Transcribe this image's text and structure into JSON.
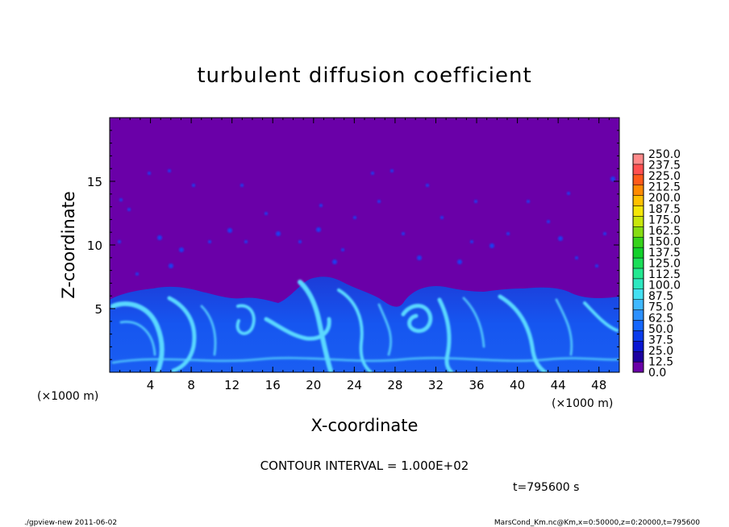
{
  "chart_data": {
    "type": "heatmap",
    "title": "turbulent diffusion coefficient",
    "xlabel": "X-coordinate",
    "ylabel": "Z-coordinate",
    "x_unit": "(×1000 m)",
    "y_unit": "(×1000 m)",
    "xlim": [
      0,
      50
    ],
    "ylim": [
      0,
      20
    ],
    "x_ticks": [
      4,
      8,
      12,
      16,
      20,
      24,
      28,
      32,
      36,
      40,
      44,
      48
    ],
    "y_ticks": [
      5,
      10,
      15
    ],
    "colorbar_levels": [
      "0.0",
      "12.5",
      "25.0",
      "37.5",
      "50.0",
      "62.5",
      "75.0",
      "87.5",
      "100.0",
      "112.5",
      "125.0",
      "137.5",
      "150.0",
      "162.5",
      "175.0",
      "187.5",
      "200.0",
      "212.5",
      "225.0",
      "237.5",
      "250.0"
    ],
    "colorbar_colors": [
      "#6a00a8",
      "#1c00a0",
      "#0a16d2",
      "#0b3cec",
      "#1466ff",
      "#2c90ff",
      "#3fb8ff",
      "#44e0f2",
      "#2de8c0",
      "#22e890",
      "#1ade58",
      "#12d02a",
      "#36d21a",
      "#86dc12",
      "#c8e60c",
      "#f4e608",
      "#ffc000",
      "#ff8a00",
      "#ff5a1a",
      "#ff5050",
      "#ff8a8a"
    ],
    "background_level": "0.0",
    "boundary_layer_top_km_approx": 6.5,
    "contour_interval": "CONTOUR INTERVAL = 1.000E+02",
    "time_label": "t=795600  s",
    "footer_left": "./gpview-new   2011-06-02",
    "footer_right": "MarsCond_Km.nc@Km,x=0:50000,z=0:20000,t=795600"
  }
}
